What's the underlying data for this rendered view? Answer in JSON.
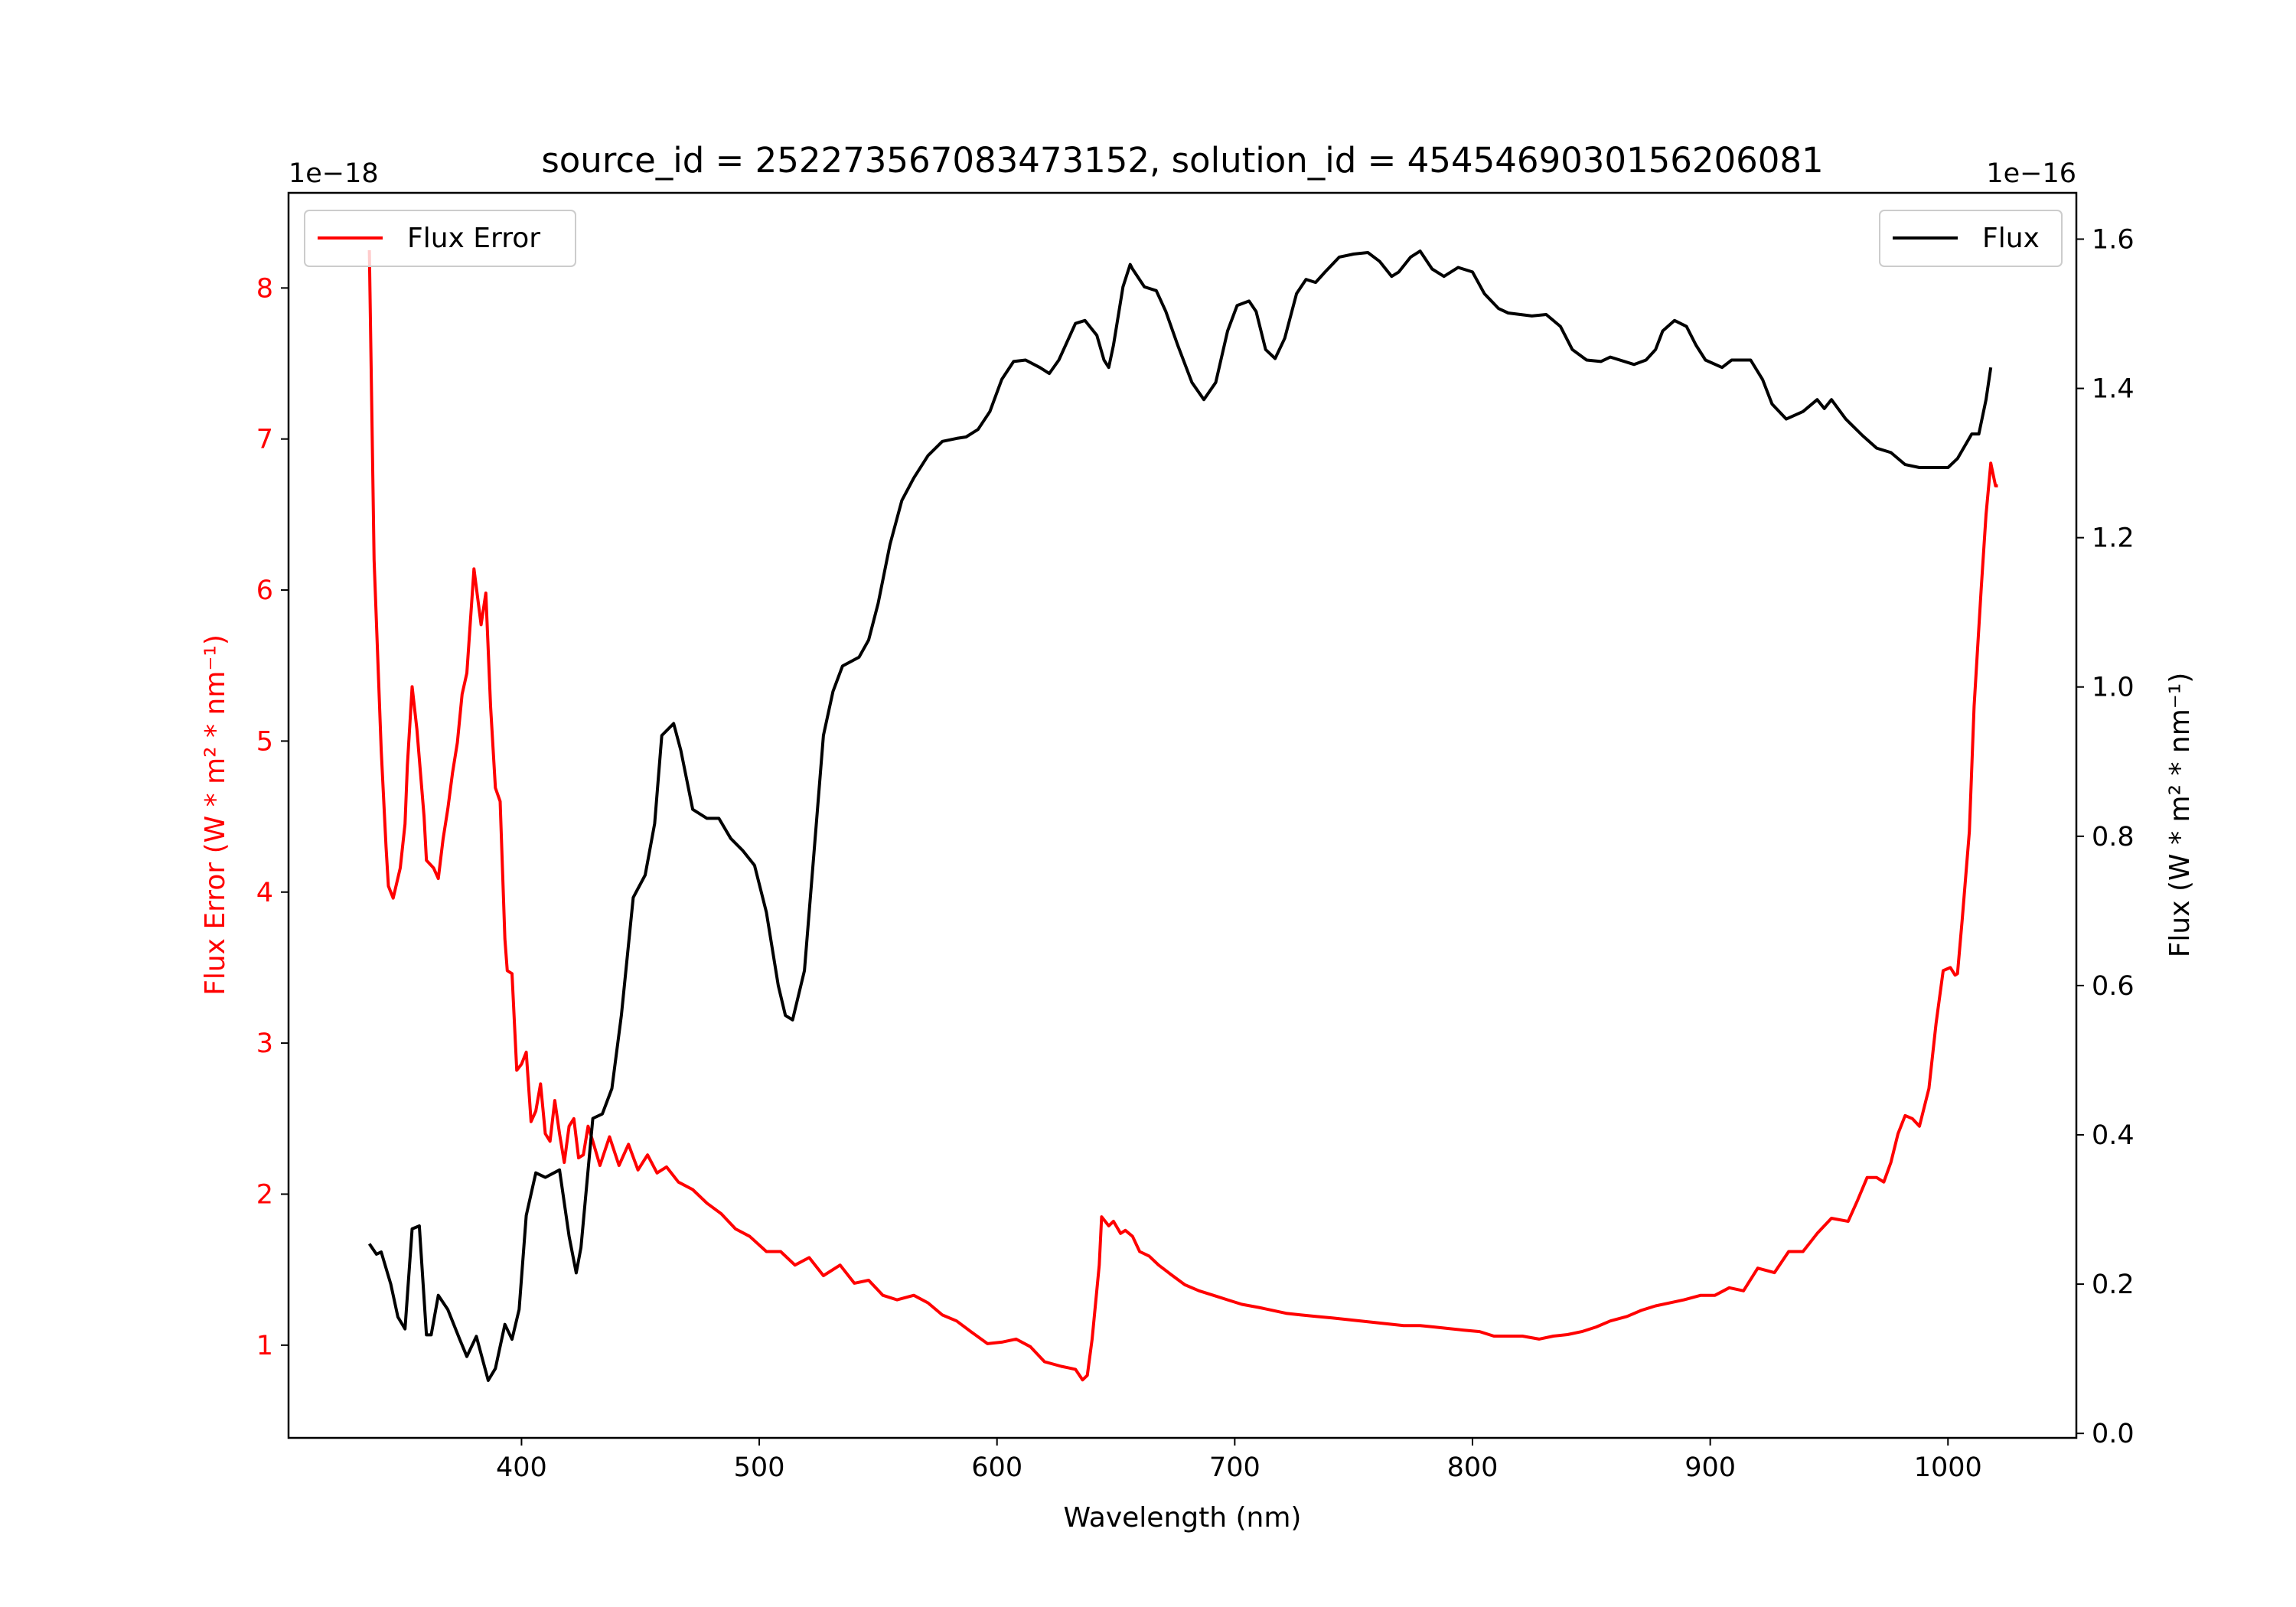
{
  "chart_data": {
    "type": "line",
    "title": "source_id = 252273567083473152, solution_id = 4545469030156206081",
    "xlabel": "Wavelength (nm)",
    "ylabel_left": "Flux Error (W * m² * nm⁻¹)",
    "ylabel_right": "Flux (W * m² * nm⁻¹)",
    "offset_left": "1e−18",
    "offset_right": "1e−16",
    "xlim": [
      302,
      1054
    ],
    "ylim_left": [
      0.386,
      8.63
    ],
    "ylim_right": [
      -0.006,
      1.662
    ],
    "xticks": [
      400,
      500,
      600,
      700,
      800,
      900,
      1000
    ],
    "yticks_left": [
      1,
      2,
      3,
      4,
      5,
      6,
      7,
      8
    ],
    "yticks_right": [
      "0.0",
      "0.2",
      "0.4",
      "0.6",
      "0.8",
      "1.0",
      "1.2",
      "1.4",
      "1.6"
    ],
    "grid": false,
    "legend_left": {
      "label": "Flux Error",
      "placement": "top-left"
    },
    "legend_right": {
      "label": "Flux",
      "placement": "top-right"
    },
    "colors": {
      "flux_error": "#ff0000",
      "flux": "#000000",
      "left_axis": "#ff0000"
    },
    "series": [
      {
        "name": "Flux Error",
        "axis": "left",
        "color": "#ff0000",
        "x": [
          336,
          338,
          341,
          343,
          344,
          346,
          349,
          351,
          352,
          354,
          356,
          359,
          360,
          363,
          365,
          367,
          369,
          371,
          373,
          375,
          377,
          380,
          383,
          385,
          387,
          389,
          391,
          393,
          394,
          396,
          398,
          400,
          402,
          404,
          406,
          408,
          410,
          412,
          414,
          416,
          418,
          420,
          422,
          424,
          426,
          428,
          430,
          433,
          437,
          441,
          445,
          449,
          453,
          457,
          461,
          466,
          472,
          478,
          484,
          490,
          496,
          503,
          509,
          515,
          521,
          527,
          534,
          540,
          546,
          552,
          558,
          565,
          571,
          577,
          583,
          589,
          596,
          602,
          608,
          614,
          620,
          627,
          633,
          636,
          638,
          640,
          643,
          644,
          647,
          649,
          652,
          654,
          657,
          660,
          664,
          668,
          673,
          679,
          685,
          691,
          697,
          703,
          710,
          716,
          722,
          728,
          734,
          741,
          747,
          753,
          759,
          765,
          771,
          778,
          784,
          790,
          796,
          803,
          809,
          815,
          821,
          828,
          834,
          840,
          846,
          852,
          858,
          865,
          871,
          877,
          883,
          889,
          896,
          902,
          908,
          914,
          920,
          927,
          933,
          939,
          945,
          951,
          958,
          962,
          966,
          970,
          973,
          976,
          979,
          982,
          985,
          988,
          992,
          995,
          998,
          1001,
          1003,
          1004,
          1006,
          1009,
          1011,
          1014,
          1016,
          1018,
          1020,
          1021
        ],
        "y": [
          8.25,
          6.2,
          4.94,
          4.3,
          4.04,
          3.96,
          4.16,
          4.45,
          4.84,
          5.36,
          5.08,
          4.5,
          4.21,
          4.16,
          4.09,
          4.35,
          4.55,
          4.79,
          4.99,
          5.31,
          5.45,
          6.14,
          5.77,
          5.98,
          5.23,
          4.69,
          4.6,
          3.69,
          3.48,
          3.46,
          2.82,
          2.86,
          2.94,
          2.48,
          2.55,
          2.73,
          2.4,
          2.35,
          2.62,
          2.4,
          2.21,
          2.45,
          2.5,
          2.24,
          2.26,
          2.45,
          2.35,
          2.19,
          2.38,
          2.19,
          2.33,
          2.16,
          2.26,
          2.14,
          2.18,
          2.08,
          2.03,
          1.94,
          1.87,
          1.77,
          1.72,
          1.62,
          1.62,
          1.53,
          1.58,
          1.46,
          1.53,
          1.41,
          1.43,
          1.33,
          1.3,
          1.33,
          1.28,
          1.2,
          1.16,
          1.09,
          1.01,
          1.02,
          1.04,
          0.99,
          0.89,
          0.86,
          0.84,
          0.77,
          0.8,
          1.04,
          1.53,
          1.85,
          1.79,
          1.82,
          1.74,
          1.76,
          1.72,
          1.62,
          1.59,
          1.53,
          1.47,
          1.4,
          1.36,
          1.33,
          1.3,
          1.27,
          1.25,
          1.23,
          1.21,
          1.2,
          1.19,
          1.18,
          1.17,
          1.16,
          1.15,
          1.14,
          1.13,
          1.13,
          1.12,
          1.11,
          1.1,
          1.09,
          1.06,
          1.06,
          1.06,
          1.04,
          1.06,
          1.07,
          1.09,
          1.12,
          1.16,
          1.19,
          1.23,
          1.26,
          1.28,
          1.3,
          1.33,
          1.33,
          1.38,
          1.36,
          1.51,
          1.48,
          1.62,
          1.62,
          1.74,
          1.84,
          1.82,
          1.96,
          2.11,
          2.11,
          2.08,
          2.21,
          2.4,
          2.52,
          2.5,
          2.45,
          2.7,
          3.13,
          3.48,
          3.5,
          3.45,
          3.46,
          3.82,
          4.4,
          5.23,
          6.01,
          6.5,
          6.84,
          6.69,
          6.69
        ]
      },
      {
        "name": "Flux",
        "axis": "right",
        "color": "#000000",
        "x": [
          336,
          339,
          341,
          345,
          348,
          351,
          354,
          357,
          360,
          362,
          365,
          369,
          374,
          377,
          381,
          386,
          389,
          393,
          396,
          399,
          402,
          406,
          410,
          416,
          420,
          423,
          425,
          430,
          434,
          438,
          442,
          447,
          452,
          456,
          459,
          464,
          467,
          472,
          478,
          483,
          488,
          493,
          498,
          503,
          508,
          511,
          514,
          519,
          523,
          527,
          531,
          535,
          542,
          546,
          550,
          555,
          560,
          565,
          571,
          577,
          583,
          587,
          592,
          597,
          602,
          607,
          612,
          618,
          622,
          626,
          633,
          637,
          642,
          645,
          647,
          649,
          653,
          656,
          657,
          662,
          667,
          671,
          676,
          682,
          687,
          692,
          697,
          701,
          706,
          709,
          713,
          717,
          721,
          726,
          730,
          734,
          738,
          744,
          750,
          756,
          761,
          766,
          769,
          774,
          778,
          783,
          788,
          794,
          800,
          805,
          811,
          815,
          825,
          831,
          837,
          842,
          848,
          854,
          858,
          868,
          873,
          877,
          880,
          885,
          890,
          894,
          898,
          905,
          909,
          917,
          922,
          926,
          932,
          939,
          945,
          948,
          951,
          957,
          964,
          970,
          976,
          982,
          988,
          994,
          1000,
          1004,
          1010,
          1013,
          1016,
          1018
        ],
        "y": [
          0.254,
          0.24,
          0.243,
          0.2,
          0.156,
          0.14,
          0.274,
          0.278,
          0.132,
          0.132,
          0.185,
          0.166,
          0.126,
          0.103,
          0.13,
          0.071,
          0.087,
          0.146,
          0.126,
          0.166,
          0.292,
          0.349,
          0.343,
          0.353,
          0.264,
          0.215,
          0.249,
          0.422,
          0.428,
          0.462,
          0.56,
          0.718,
          0.748,
          0.817,
          0.935,
          0.951,
          0.915,
          0.836,
          0.824,
          0.824,
          0.797,
          0.781,
          0.761,
          0.698,
          0.6,
          0.56,
          0.554,
          0.62,
          0.777,
          0.935,
          0.994,
          1.028,
          1.04,
          1.063,
          1.112,
          1.191,
          1.25,
          1.28,
          1.31,
          1.329,
          1.333,
          1.335,
          1.345,
          1.369,
          1.412,
          1.436,
          1.438,
          1.428,
          1.42,
          1.438,
          1.487,
          1.491,
          1.471,
          1.438,
          1.428,
          1.458,
          1.536,
          1.566,
          1.56,
          1.536,
          1.531,
          1.503,
          1.458,
          1.408,
          1.385,
          1.408,
          1.477,
          1.511,
          1.517,
          1.503,
          1.452,
          1.44,
          1.467,
          1.527,
          1.546,
          1.542,
          1.556,
          1.576,
          1.58,
          1.582,
          1.57,
          1.55,
          1.556,
          1.576,
          1.584,
          1.56,
          1.55,
          1.562,
          1.556,
          1.527,
          1.507,
          1.501,
          1.497,
          1.499,
          1.483,
          1.452,
          1.438,
          1.436,
          1.442,
          1.432,
          1.438,
          1.452,
          1.477,
          1.491,
          1.483,
          1.458,
          1.438,
          1.428,
          1.438,
          1.438,
          1.412,
          1.379,
          1.359,
          1.369,
          1.385,
          1.373,
          1.385,
          1.359,
          1.337,
          1.32,
          1.314,
          1.298,
          1.294,
          1.294,
          1.294,
          1.306,
          1.339,
          1.339,
          1.385,
          1.428
        ]
      }
    ]
  }
}
